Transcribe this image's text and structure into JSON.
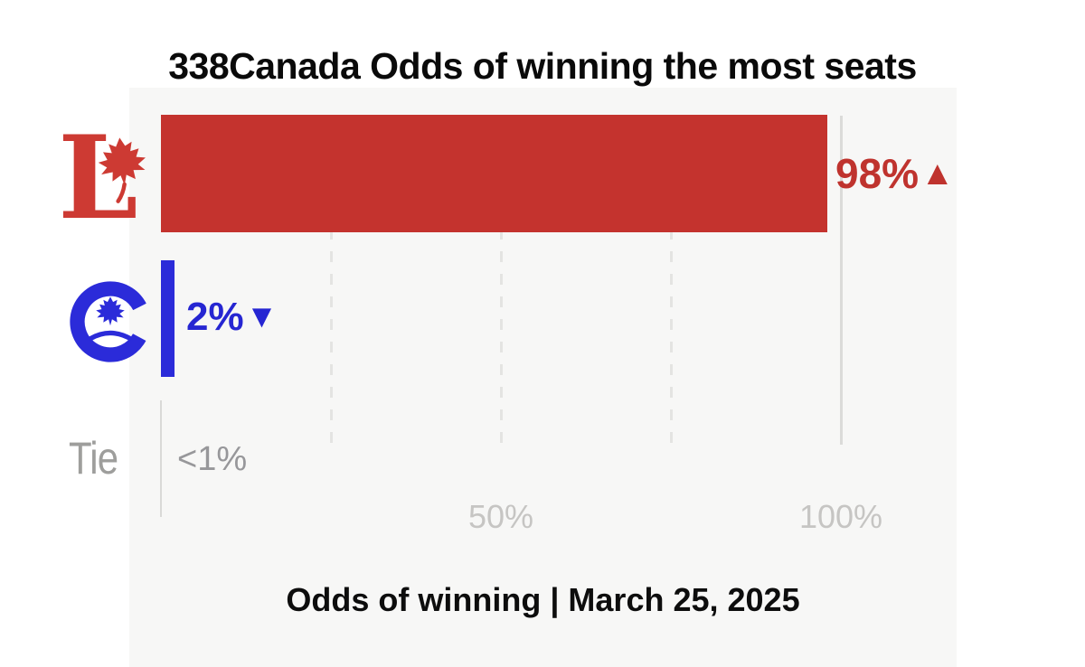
{
  "title": "338Canada Odds of winning the most seats",
  "footer": {
    "text": "Odds of winning | March 25, 2025"
  },
  "rows": [
    {
      "party": "Liberal",
      "label": "98%",
      "trend_icon": "▲",
      "trend": "up",
      "value": 98
    },
    {
      "party": "Conservative",
      "label": "2%",
      "trend_icon": "▼",
      "trend": "down",
      "value": 2
    },
    {
      "party": "Tie",
      "axis_text": "Tie",
      "label": "<1%",
      "value": 0.5
    }
  ],
  "x_axis": {
    "ticks": [
      {
        "label": "50%",
        "value": 50
      },
      {
        "label": "100%",
        "value": 100
      }
    ]
  },
  "colors": {
    "liberal_bar": "#c4332e",
    "liberal_label": "#bf332e",
    "liberal_logo": "#cd3a33",
    "conservative_bar": "#2b2bd9",
    "conservative_label": "#2626d2",
    "panel_background": "#f7f7f6",
    "gridline_dashed": "#e4e4e2",
    "gridline_solid": "#dbdbd9",
    "muted_gray_text": "#9e9e9c",
    "tick_text": "#c6c5c3",
    "title_text": "#0a0a0a"
  },
  "chart_data": {
    "type": "bar",
    "orientation": "horizontal",
    "title": "338Canada Odds of winning the most seats",
    "categories": [
      "Liberal",
      "Conservative",
      "Tie"
    ],
    "values": [
      98,
      2,
      0.5
    ],
    "value_labels": [
      "98%",
      "2%",
      "<1%"
    ],
    "trends": [
      "up",
      "down",
      null
    ],
    "xlim": [
      0,
      100
    ],
    "x_tick_labels": [
      "50%",
      "100%"
    ],
    "x_tick_values": [
      50,
      100
    ],
    "gridlines": {
      "dashed_at": [
        25,
        50,
        75
      ],
      "solid_at": [
        100
      ],
      "horizontal": false
    },
    "legend": "none (party logos used as category labels)",
    "xlabel": "Odds of winning | March 25, 2025",
    "series_colors": {
      "Liberal": "#c4332e",
      "Conservative": "#2b2bd9",
      "Tie": "#9e9e9c"
    }
  }
}
